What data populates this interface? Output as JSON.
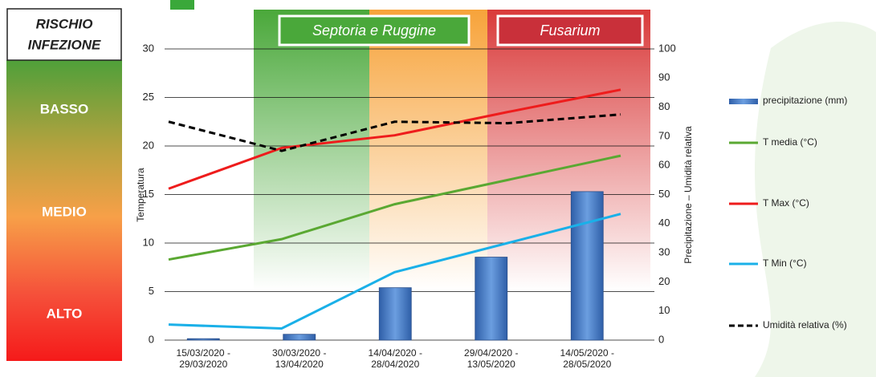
{
  "chart_data": {
    "type": "combo",
    "risk_panel": {
      "title": [
        "RISCHIO",
        "INFEZIONE"
      ],
      "levels": [
        "BASSO",
        "MEDIO",
        "ALTO"
      ]
    },
    "band_labels": [
      "Septoria e Ruggine",
      "Fusarium"
    ],
    "ylabel": "Temperatura",
    "y2label": "Precipitazione – Umidità relativa",
    "categories": [
      "15/03/2020 - 29/03/2020",
      "30/03/2020 - 13/04/2020",
      "14/04/2020 - 28/04/2020",
      "29/04/2020 - 13/05/2020",
      "14/05/2020 - 28/05/2020"
    ],
    "ylim": [
      0,
      30
    ],
    "yticks": [
      0,
      5,
      10,
      15,
      20,
      25,
      30
    ],
    "y2lim": [
      0,
      100
    ],
    "y2ticks": [
      0,
      10,
      20,
      30,
      40,
      50,
      60,
      70,
      80,
      90,
      100
    ],
    "grid": true,
    "series": [
      {
        "name": "precipitazione (mm)",
        "type": "bar",
        "axis": "y2",
        "color": "#4a7fc8",
        "values": [
          0.5,
          2,
          18,
          28.5,
          51
        ]
      },
      {
        "name": "T media (°C)",
        "type": "line",
        "color": "#5aa832",
        "values": [
          8.3,
          10.4,
          14,
          16.5,
          19
        ]
      },
      {
        "name": "T Max (°C)",
        "type": "line",
        "color": "#ee1c1c",
        "values": [
          15.6,
          19.8,
          21.1,
          23.5,
          25.8
        ]
      },
      {
        "name": "T Min (°C)",
        "type": "line",
        "color": "#1ab0e8",
        "values": [
          1.6,
          1.2,
          7,
          10,
          13
        ]
      },
      {
        "name": "Umidità relativa (%)",
        "type": "line",
        "axis": "y2",
        "dashed": true,
        "color": "#000000",
        "values": [
          75,
          65,
          75,
          74.5,
          77.5
        ]
      }
    ]
  }
}
